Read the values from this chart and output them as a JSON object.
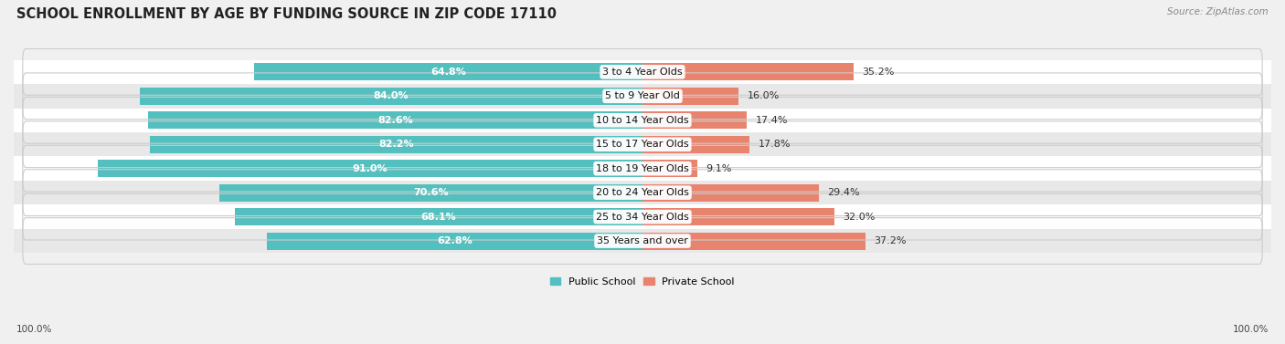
{
  "title": "SCHOOL ENROLLMENT BY AGE BY FUNDING SOURCE IN ZIP CODE 17110",
  "source": "Source: ZipAtlas.com",
  "categories": [
    "3 to 4 Year Olds",
    "5 to 9 Year Old",
    "10 to 14 Year Olds",
    "15 to 17 Year Olds",
    "18 to 19 Year Olds",
    "20 to 24 Year Olds",
    "25 to 34 Year Olds",
    "35 Years and over"
  ],
  "public_pct": [
    64.8,
    84.0,
    82.6,
    82.2,
    91.0,
    70.6,
    68.1,
    62.8
  ],
  "private_pct": [
    35.2,
    16.0,
    17.4,
    17.8,
    9.1,
    29.4,
    32.0,
    37.2
  ],
  "public_color": "#54BFBF",
  "private_color": "#E8836E",
  "bg_color": "#F0F0F0",
  "row_bg_even": "#FFFFFF",
  "row_bg_odd": "#E8E8E8",
  "title_fontsize": 10.5,
  "source_fontsize": 7.5,
  "cat_fontsize": 8,
  "bar_label_fontsize": 8,
  "footer_label": "100.0%",
  "legend_public": "Public School",
  "legend_private": "Private School"
}
